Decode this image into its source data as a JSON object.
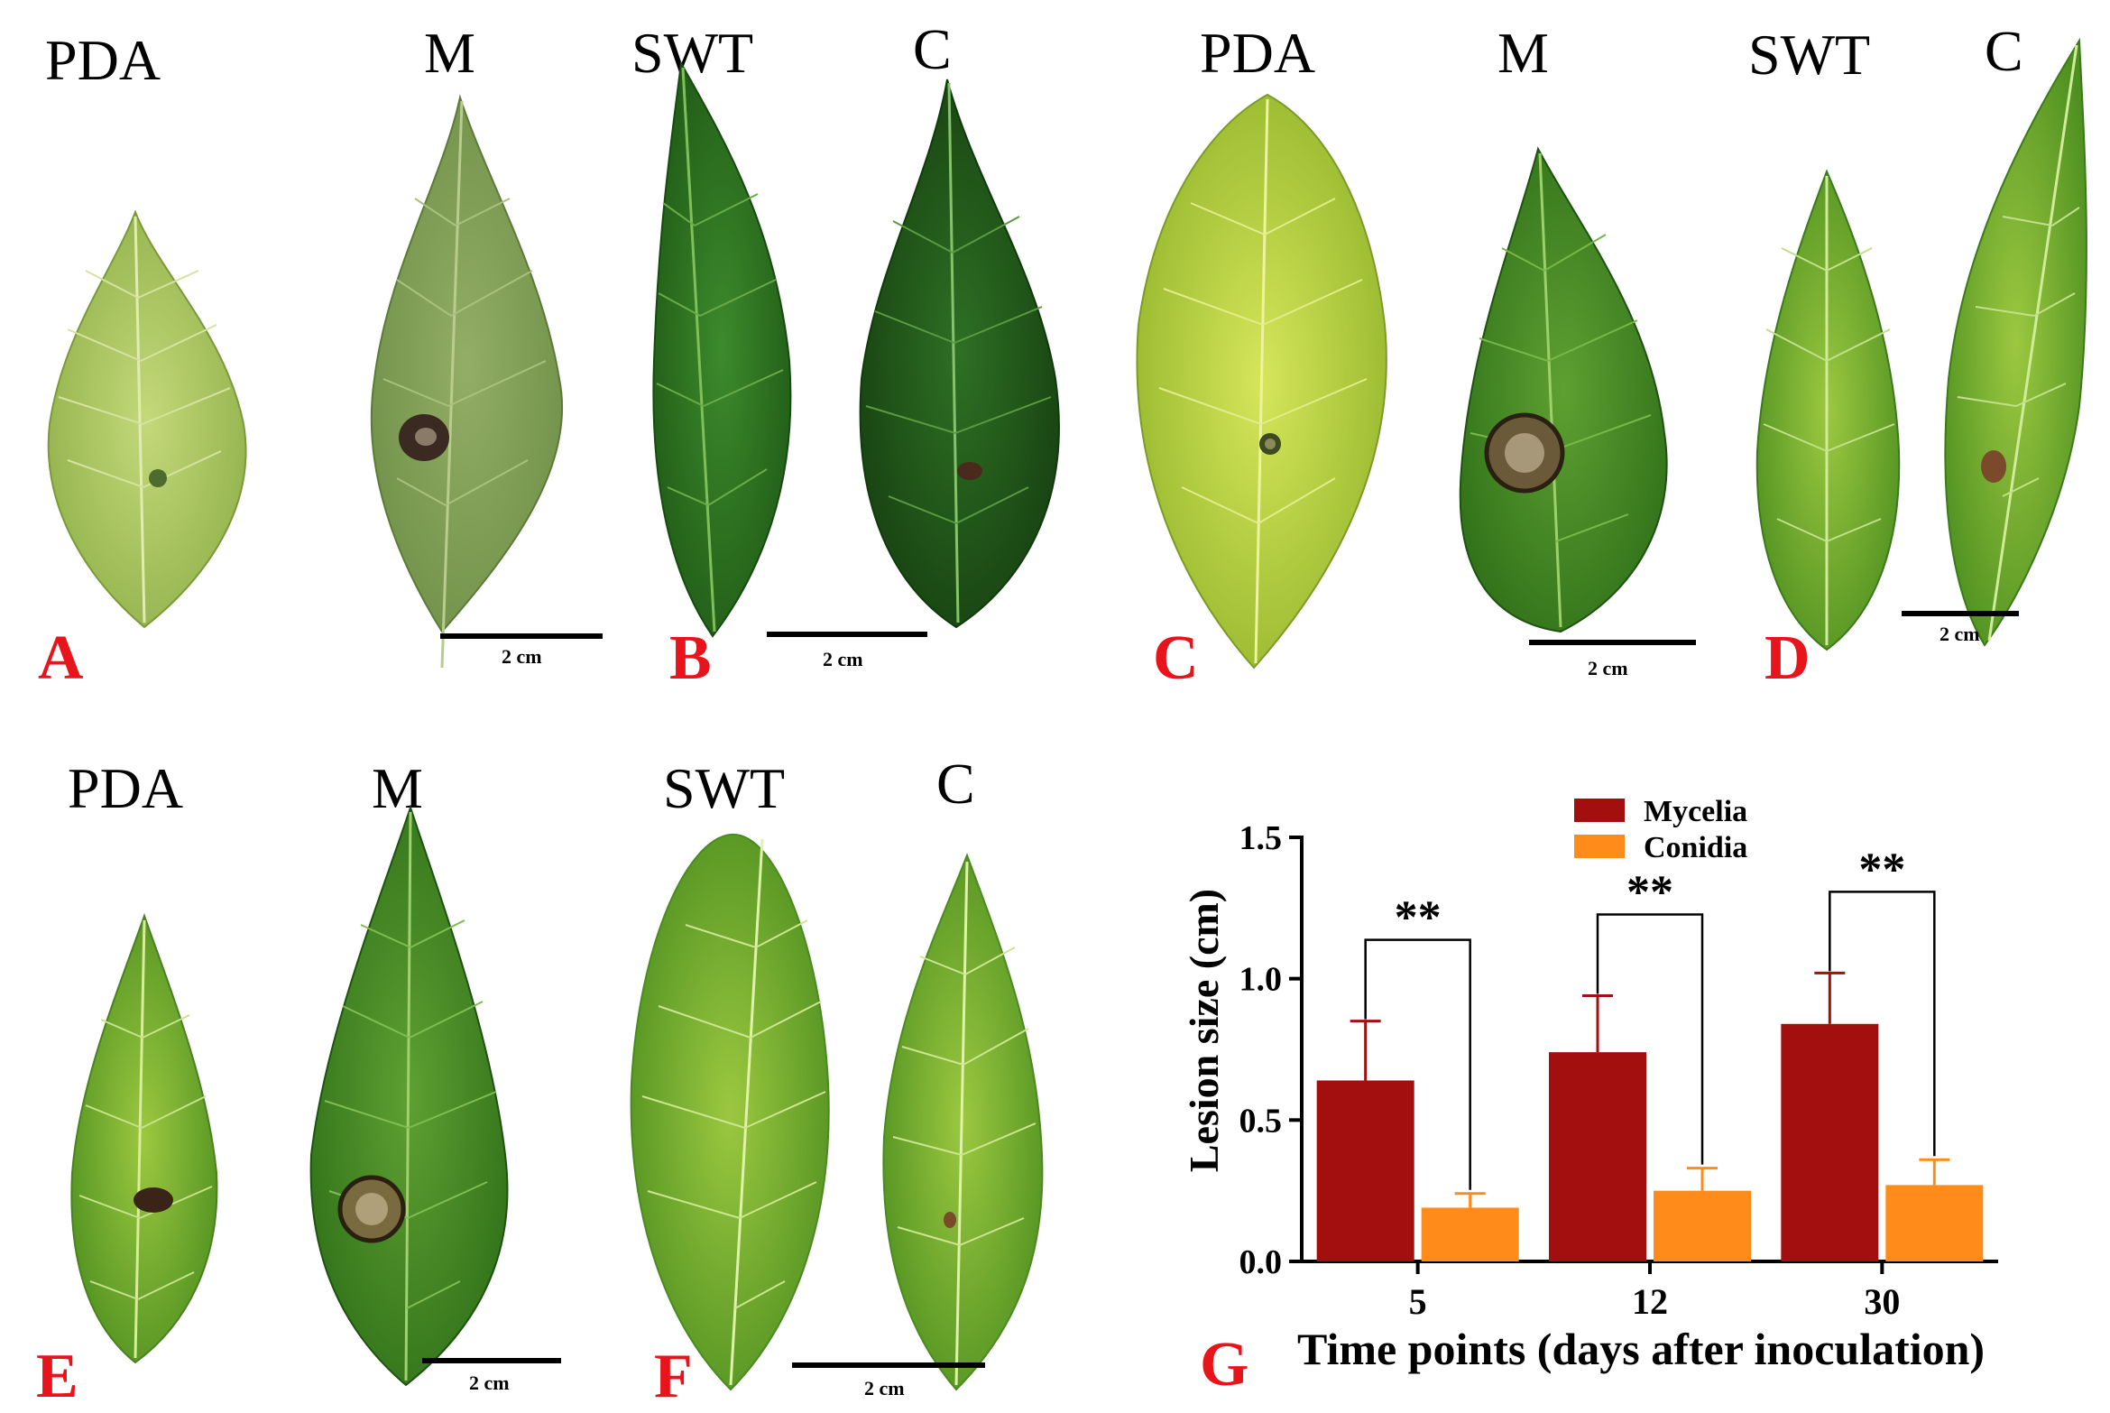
{
  "panels": {
    "A": {
      "letter": "A",
      "labels": [
        "PDA",
        "M"
      ],
      "scale": "2 cm"
    },
    "B": {
      "letter": "B",
      "labels": [
        "SWT",
        "C"
      ],
      "scale": "2 cm"
    },
    "C": {
      "letter": "C",
      "labels": [
        "PDA",
        "M"
      ],
      "scale": "2 cm"
    },
    "D": {
      "letter": "D",
      "labels": [
        "SWT",
        "C"
      ],
      "scale": "2 cm"
    },
    "E": {
      "letter": "E",
      "labels": [
        "PDA",
        "M"
      ],
      "scale": "2 cm"
    },
    "F": {
      "letter": "F",
      "labels": [
        "SWT",
        "C"
      ],
      "scale": "2 cm"
    },
    "G": {
      "letter": "G"
    }
  },
  "colors": {
    "panel_letter": "#e8141c",
    "mycelia": "#a30f0f",
    "conidia": "#ff8c1a"
  },
  "chart_data": {
    "type": "bar",
    "categories": [
      "5",
      "12",
      "30"
    ],
    "series": [
      {
        "name": "Mycelia",
        "values": [
          0.64,
          0.74,
          0.84
        ],
        "errors": [
          0.21,
          0.2,
          0.18
        ]
      },
      {
        "name": "Conidia",
        "values": [
          0.19,
          0.25,
          0.27
        ],
        "errors": [
          0.05,
          0.08,
          0.09
        ]
      }
    ],
    "significance": [
      "**",
      "**",
      "**"
    ],
    "xlabel": "Time points (days after inoculation)",
    "ylabel": "Lesion size (cm)",
    "ylim": [
      0,
      1.5
    ],
    "yticks": [
      0.0,
      0.5,
      1.0,
      1.5
    ],
    "ytick_labels": [
      "0.0",
      "0.5",
      "1.0",
      "1.5"
    ],
    "legend_position": "top-center",
    "grid": false
  }
}
